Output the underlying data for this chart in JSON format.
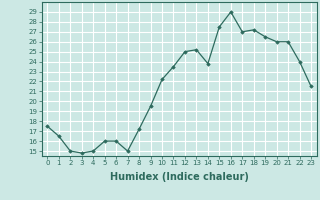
{
  "title": "",
  "xlabel": "Humidex (Indice chaleur)",
  "ylabel": "",
  "x": [
    0,
    1,
    2,
    3,
    4,
    5,
    6,
    7,
    8,
    9,
    10,
    11,
    12,
    13,
    14,
    15,
    16,
    17,
    18,
    19,
    20,
    21,
    22,
    23
  ],
  "y": [
    17.5,
    16.5,
    15.0,
    14.8,
    15.0,
    16.0,
    16.0,
    15.0,
    17.2,
    19.5,
    22.2,
    23.5,
    25.0,
    25.2,
    23.8,
    27.5,
    29.0,
    27.0,
    27.2,
    26.5,
    26.0,
    26.0,
    24.0,
    21.5
  ],
  "line_color": "#2e6b5e",
  "marker": "D",
  "marker_size": 1.8,
  "line_width": 0.9,
  "ylim": [
    14.5,
    30.0
  ],
  "xlim": [
    -0.5,
    23.5
  ],
  "yticks": [
    15,
    16,
    17,
    18,
    19,
    20,
    21,
    22,
    23,
    24,
    25,
    26,
    27,
    28,
    29
  ],
  "xticks": [
    0,
    1,
    2,
    3,
    4,
    5,
    6,
    7,
    8,
    9,
    10,
    11,
    12,
    13,
    14,
    15,
    16,
    17,
    18,
    19,
    20,
    21,
    22,
    23
  ],
  "background_color": "#cce8e4",
  "grid_color": "#ffffff",
  "tick_fontsize": 5.0,
  "label_fontsize": 7.0
}
